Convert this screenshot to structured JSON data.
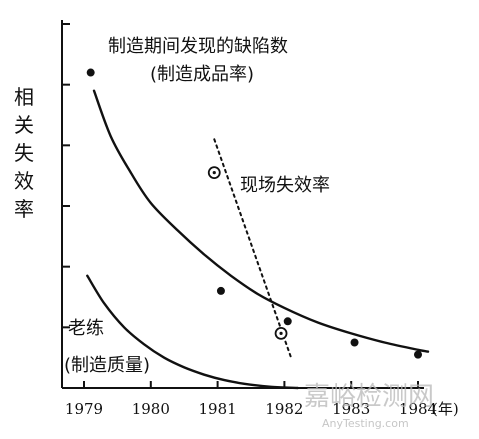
{
  "chart_data": {
    "type": "line",
    "ylabel": "相关失效率",
    "x_unit_label": "(年)",
    "xlim": [
      1979,
      1984
    ],
    "x_ticks": [
      "1979",
      "1980",
      "1981",
      "1982",
      "1983",
      "1984"
    ],
    "ylim": [
      0,
      6
    ],
    "y_ticks": [
      1,
      2,
      3,
      4,
      5,
      6
    ],
    "series": [
      {
        "name": "制造期间发现的缺陷数(制造成品率)",
        "style": "solid-curve-with-dots",
        "fit_x": [
          1979.15,
          1979.4,
          1979.7,
          1980.0,
          1980.4,
          1980.8,
          1981.2,
          1981.6,
          1982.0,
          1982.5,
          1983.0,
          1983.5,
          1984.0,
          1984.15
        ],
        "fit_y": [
          4.9,
          4.15,
          3.55,
          3.05,
          2.6,
          2.2,
          1.85,
          1.55,
          1.32,
          1.08,
          0.9,
          0.75,
          0.63,
          0.6
        ],
        "points_x": [
          1979.1,
          1981.05,
          1982.05,
          1983.05,
          1984.0
        ],
        "points_y": [
          5.2,
          1.6,
          1.1,
          0.75,
          0.55
        ]
      },
      {
        "name": "现场失效率",
        "style": "dotted-line-with-circles",
        "fit_x": [
          1980.95,
          1982.1
        ],
        "fit_y": [
          4.1,
          0.5
        ],
        "points_x": [
          1980.95,
          1981.95
        ],
        "points_y": [
          3.55,
          0.9
        ]
      },
      {
        "name": "老练(制造质量)",
        "style": "solid-curve",
        "fit_x": [
          1979.05,
          1979.3,
          1979.6,
          1979.9,
          1980.2,
          1980.5,
          1980.8,
          1981.1,
          1981.4,
          1981.8,
          1982.2
        ],
        "fit_y": [
          1.85,
          1.4,
          1.0,
          0.72,
          0.5,
          0.34,
          0.22,
          0.13,
          0.07,
          0.02,
          0.0
        ]
      }
    ],
    "annotations": [
      {
        "text": "制造期间发现的缺陷数"
      },
      {
        "text": "(制造成品率)"
      },
      {
        "text": "现场失效率"
      },
      {
        "text": "老练"
      },
      {
        "text": "(制造质量)"
      }
    ],
    "grid": false,
    "legend": "none",
    "colors": {
      "ink": "#111111",
      "watermark": "#b8b8b8"
    }
  },
  "watermark": {
    "text": "嘉峪检测网",
    "subtext": "AnyTesting.com"
  }
}
